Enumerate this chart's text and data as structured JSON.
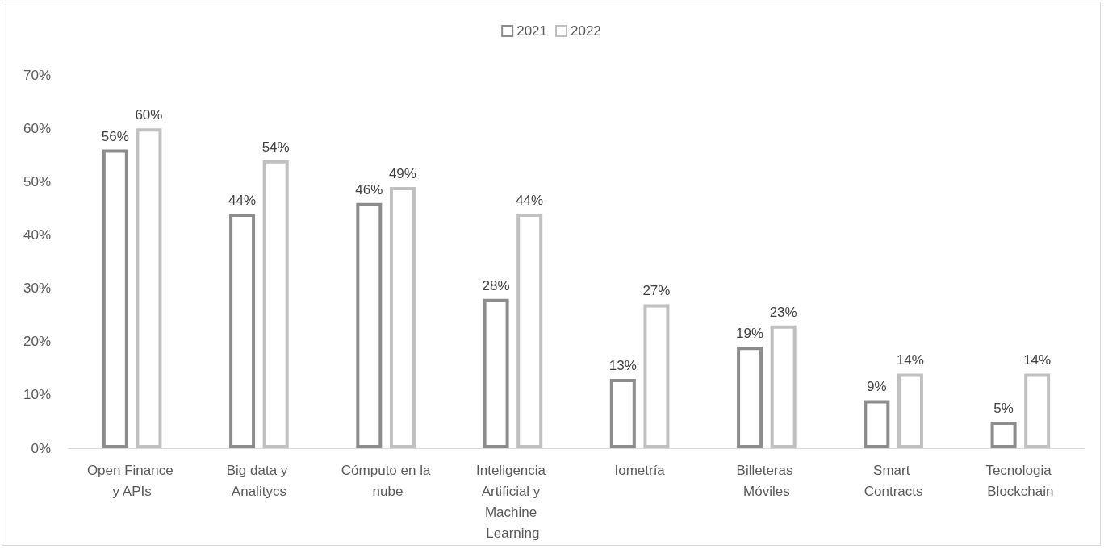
{
  "chart_data": {
    "type": "bar",
    "categories": [
      "Open Finance y APIs",
      "Big data y Analitycs",
      "Cómputo en la nube",
      "Inteligencia Artificial y Machine Learning",
      "Iometría",
      "Billeteras Móviles",
      "Smart Contracts",
      "Tecnologia Blockchain"
    ],
    "series": [
      {
        "name": "2021",
        "color": "#8c8c8c",
        "values": [
          56,
          44,
          46,
          28,
          13,
          19,
          9,
          5
        ],
        "value_labels": [
          "56%",
          "44%",
          "46%",
          "28%",
          "13%",
          "19%",
          "9%",
          "5%"
        ]
      },
      {
        "name": "2022",
        "color": "#c0c0c0",
        "values": [
          60,
          54,
          49,
          44,
          27,
          23,
          14,
          14
        ],
        "value_labels": [
          "60%",
          "54%",
          "49%",
          "44%",
          "27%",
          "23%",
          "14%",
          "14%"
        ]
      }
    ],
    "ylim": [
      0,
      70
    ],
    "yticks": [
      {
        "value": 0,
        "label": "0%"
      },
      {
        "value": 10,
        "label": "10%"
      },
      {
        "value": 20,
        "label": "20%"
      },
      {
        "value": 30,
        "label": "30%"
      },
      {
        "value": 40,
        "label": "40%"
      },
      {
        "value": 50,
        "label": "50%"
      },
      {
        "value": 60,
        "label": "60%"
      },
      {
        "value": 70,
        "label": "70%"
      }
    ],
    "grid": false,
    "legend": "top"
  }
}
